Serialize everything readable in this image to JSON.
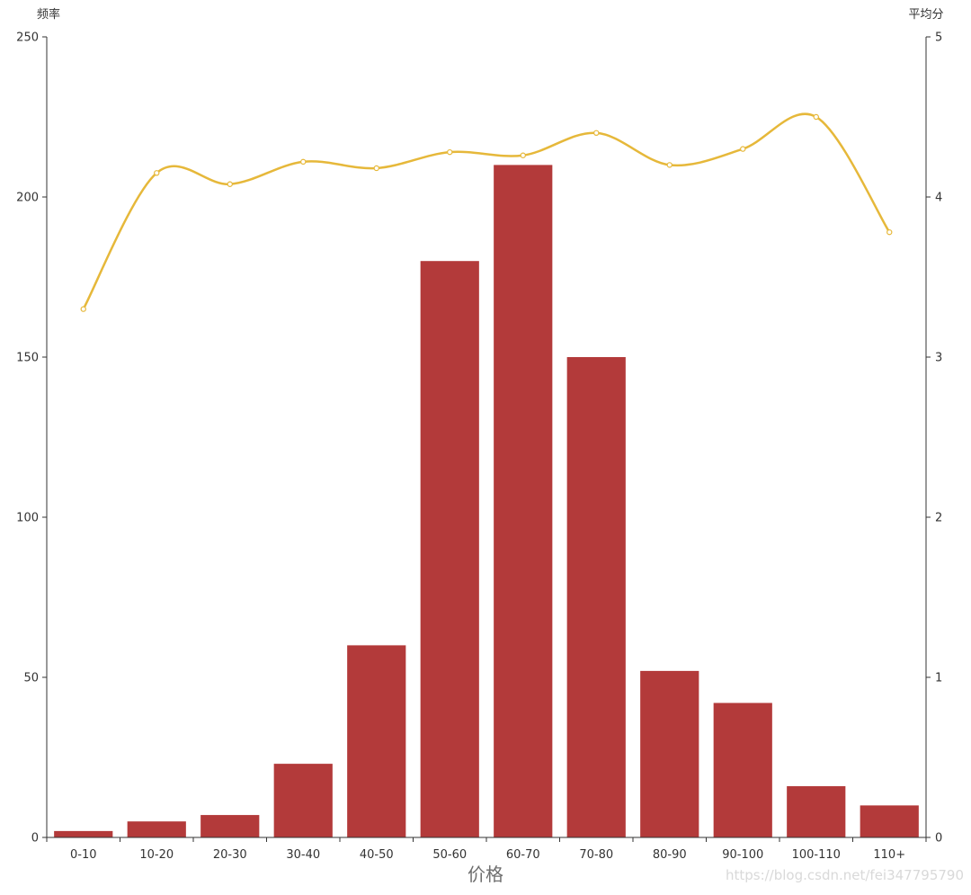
{
  "chart_data": {
    "type": "bar",
    "categories": [
      "0-10",
      "10-20",
      "20-30",
      "30-40",
      "40-50",
      "50-60",
      "60-70",
      "70-80",
      "80-90",
      "90-100",
      "100-110",
      "110+"
    ],
    "xlabel": "价格",
    "y_left": {
      "label": "频率",
      "range": [
        0,
        250
      ],
      "ticks": [
        0,
        50,
        100,
        150,
        200,
        250
      ]
    },
    "y_right": {
      "label": "平均分",
      "range": [
        0,
        5
      ],
      "ticks": [
        0,
        1,
        2,
        3,
        4,
        5
      ]
    },
    "series": [
      {
        "type": "bar",
        "axis": "left",
        "values": [
          2,
          5,
          7,
          23,
          60,
          180,
          210,
          150,
          52,
          42,
          16,
          10
        ],
        "color": "#b33a3a"
      },
      {
        "type": "line",
        "axis": "right",
        "smooth": true,
        "values": [
          3.3,
          4.15,
          4.08,
          4.22,
          4.18,
          4.28,
          4.26,
          4.4,
          4.2,
          4.3,
          4.5,
          3.78
        ],
        "color": "#e6b83a"
      }
    ],
    "grid": false,
    "legend": "none"
  },
  "watermark": "https://blog.csdn.net/fei347795790"
}
